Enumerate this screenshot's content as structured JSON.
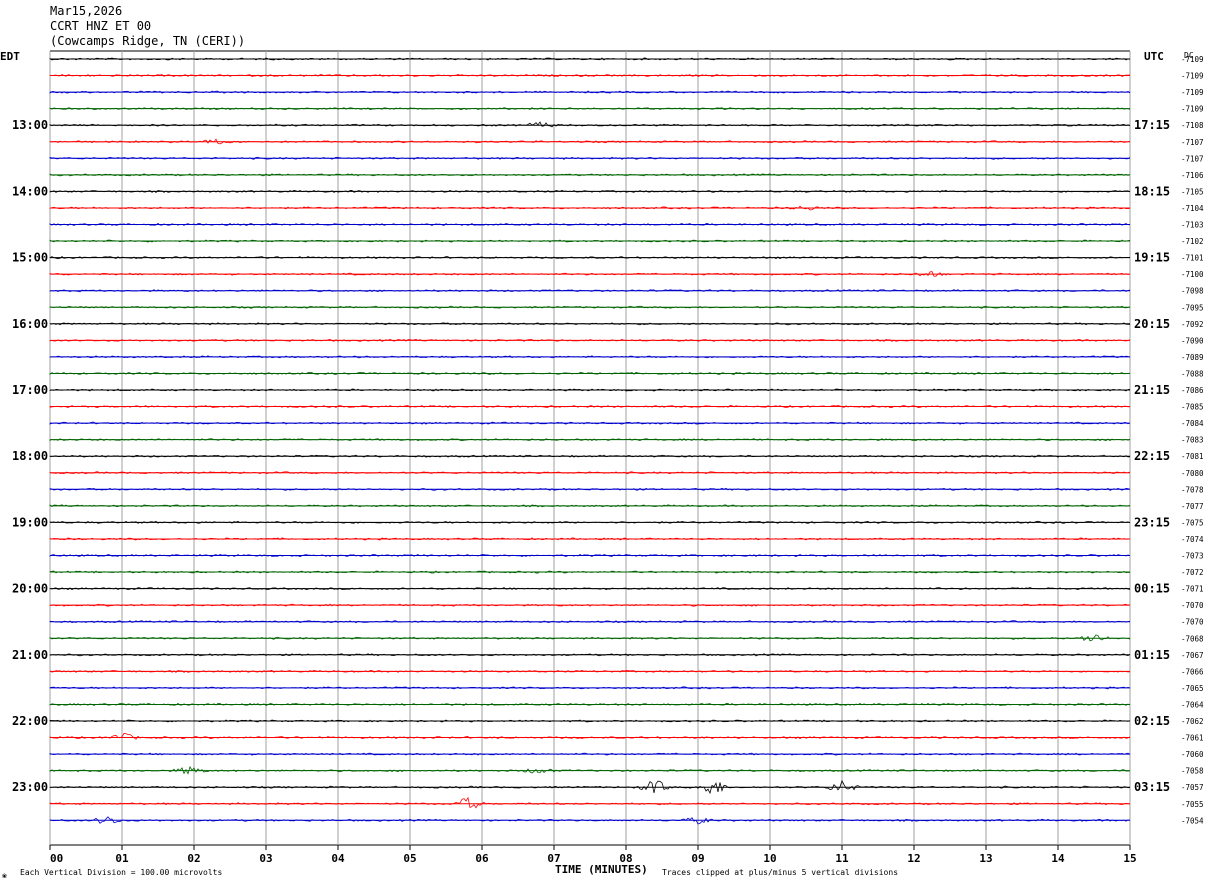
{
  "header": {
    "date": "Mar15,2026",
    "channel": "CCRT HNZ ET 00",
    "station": "(Cowcamps Ridge, TN (CERI))"
  },
  "left_tz": "EDT",
  "right_tz": "UTC",
  "dc_label": "DC",
  "footer": {
    "scale_note": "Each Vertical Division =  100.00 microvolts",
    "clip_note": "Traces clipped at plus/minus 5 vertical divisions",
    "logo_mark": "❀"
  },
  "colors": {
    "trace_cycle": [
      "#000000",
      "#ff0000",
      "#0000cc",
      "#006400"
    ],
    "grid": "#a0a0a0",
    "baseline_note": "trace colors cycle black, red, blue, green"
  },
  "chart_data": {
    "type": "line",
    "xlabel": "TIME (MINUTES)",
    "ylabel": "",
    "x_ticks": [
      "00",
      "01",
      "02",
      "03",
      "04",
      "05",
      "06",
      "07",
      "08",
      "09",
      "10",
      "11",
      "12",
      "13",
      "14",
      "15"
    ],
    "xlim": [
      0,
      15
    ],
    "rows_per_hour": 4,
    "left_hour_labels": [
      "13:00",
      "14:00",
      "15:00",
      "16:00",
      "17:00",
      "18:00",
      "19:00",
      "20:00",
      "21:00",
      "22:00",
      "23:00"
    ],
    "right_hour_labels": [
      "17:15",
      "18:15",
      "19:15",
      "20:15",
      "21:15",
      "22:15",
      "23:15",
      "00:15",
      "01:15",
      "02:15",
      "03:15"
    ],
    "dc_offsets": [
      "-7109",
      "-7109",
      "-7109",
      "-7109",
      "-7108",
      "-7107",
      "-7107",
      "-7106",
      "-7105",
      "-7104",
      "-7103",
      "-7102",
      "-7101",
      "-7100",
      "-7098",
      "-7095",
      "-7092",
      "-7090",
      "-7089",
      "-7088",
      "-7086",
      "-7085",
      "-7084",
      "-7083",
      "-7081",
      "-7080",
      "-7078",
      "-7077",
      "-7075",
      "-7074",
      "-7073",
      "-7072",
      "-7071",
      "-7070",
      "-7070",
      "-7068",
      "-7067",
      "-7066",
      "-7065",
      "-7064",
      "-7062",
      "-7061",
      "-7060",
      "-7058",
      "-7057",
      "-7055",
      "-7054"
    ],
    "events": [
      {
        "row": 4,
        "minute": 6.8,
        "amplitude": 3
      },
      {
        "row": 5,
        "minute": 2.3,
        "amplitude": 2
      },
      {
        "row": 9,
        "minute": 10.5,
        "amplitude": 2
      },
      {
        "row": 13,
        "minute": 12.2,
        "amplitude": 3
      },
      {
        "row": 35,
        "minute": 14.5,
        "amplitude": 5
      },
      {
        "row": 41,
        "minute": 1.0,
        "amplitude": 4
      },
      {
        "row": 43,
        "minute": 1.95,
        "amplitude": 4
      },
      {
        "row": 43,
        "minute": 6.8,
        "amplitude": 3
      },
      {
        "row": 44,
        "minute": 8.4,
        "amplitude": 7
      },
      {
        "row": 44,
        "minute": 9.2,
        "amplitude": 8
      },
      {
        "row": 44,
        "minute": 11.0,
        "amplitude": 6
      },
      {
        "row": 45,
        "minute": 5.8,
        "amplitude": 6
      },
      {
        "row": 46,
        "minute": 0.8,
        "amplitude": 4
      },
      {
        "row": 46,
        "minute": 9.0,
        "amplitude": 3
      }
    ]
  }
}
